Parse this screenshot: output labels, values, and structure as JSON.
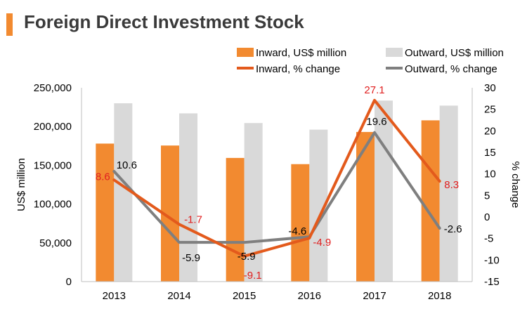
{
  "title": "Foreign Direct Investment Stock",
  "colors": {
    "accent": "#f28a30",
    "inward_bar": "#f28a30",
    "outward_bar": "#d9d9d9",
    "inward_line": "#e35a1c",
    "outward_line": "#7f7f7f",
    "inward_label": "#e02020",
    "outward_label": "#000000"
  },
  "chart_data": {
    "type": "bar+line",
    "title": "Foreign Direct Investment Stock",
    "categories": [
      "2013",
      "2014",
      "2015",
      "2016",
      "2017",
      "2018"
    ],
    "left_axis": {
      "label": "US$ million",
      "ylim": [
        0,
        250000
      ],
      "ticks": [
        "0",
        "50,000",
        "100,000",
        "150,000",
        "200,000",
        "250,000"
      ]
    },
    "right_axis": {
      "label": "% change",
      "ylim": [
        -15,
        30
      ],
      "ticks": [
        "-15",
        "-10",
        "-5",
        "0",
        "5",
        "10",
        "15",
        "20",
        "25",
        "30"
      ]
    },
    "bar_series": [
      {
        "name": "Inward, US$ million",
        "values": [
          178000,
          175500,
          159500,
          151500,
          193000,
          208000
        ]
      },
      {
        "name": "Outward, US$ million",
        "values": [
          230000,
          217000,
          204500,
          196000,
          233500,
          227000
        ]
      }
    ],
    "line_series": [
      {
        "name": "Inward, % change",
        "values": [
          8.6,
          -1.7,
          -9.1,
          -4.9,
          27.1,
          8.3
        ],
        "labels": [
          "8.6",
          "-1.7",
          "-9.1",
          "-4.9",
          "27.1",
          "8.3"
        ]
      },
      {
        "name": "Outward, % change",
        "values": [
          10.6,
          -5.9,
          -5.9,
          -4.6,
          19.6,
          -2.6
        ],
        "labels": [
          "10.6",
          "-5.9",
          "-5.9",
          "-4.6",
          "19.6",
          "-2.6"
        ]
      }
    ],
    "legend": [
      "Inward, US$ million",
      "Outward, US$ million",
      "Inward, % change",
      "Outward, % change"
    ],
    "legend_position": "top",
    "grid": false
  }
}
